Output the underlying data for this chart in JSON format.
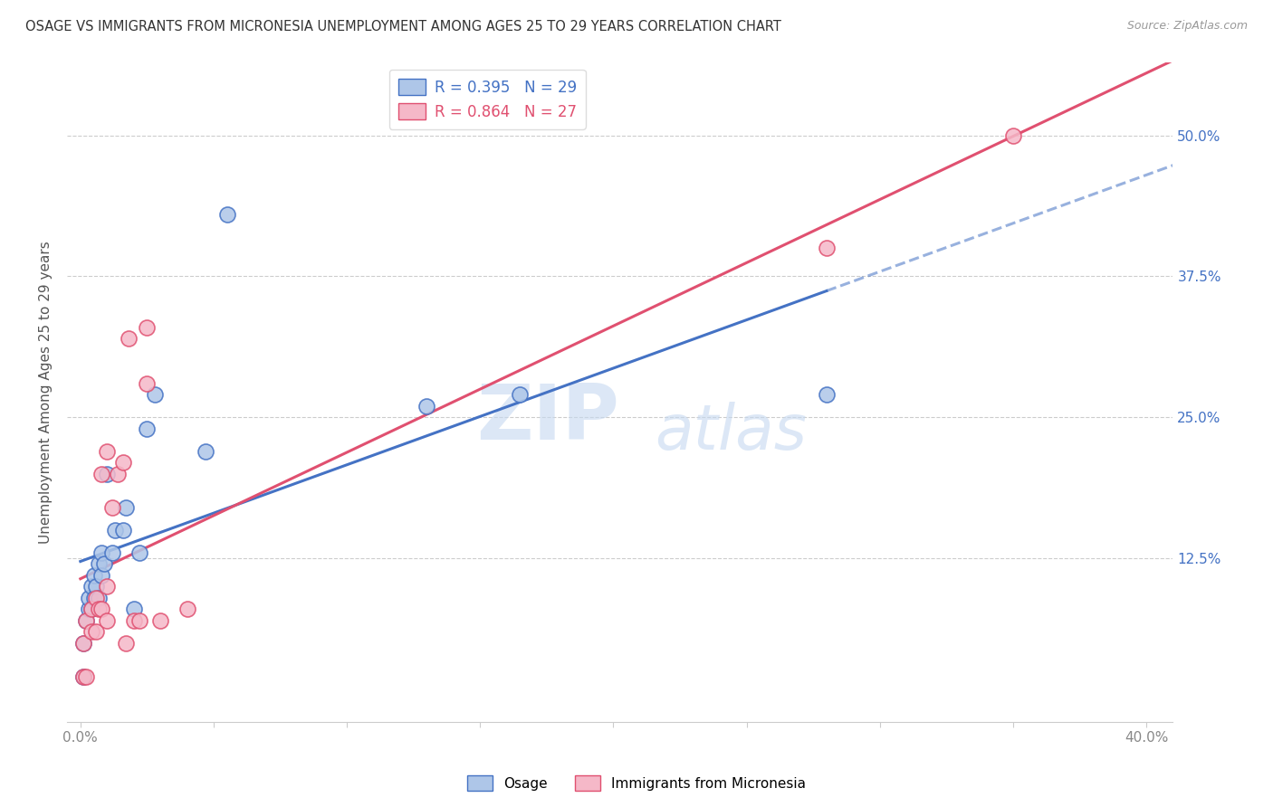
{
  "title": "OSAGE VS IMMIGRANTS FROM MICRONESIA UNEMPLOYMENT AMONG AGES 25 TO 29 YEARS CORRELATION CHART",
  "source": "Source: ZipAtlas.com",
  "ylabel": "Unemployment Among Ages 25 to 29 years",
  "ytick_labels": [
    "",
    "12.5%",
    "25.0%",
    "37.5%",
    "50.0%"
  ],
  "ytick_values": [
    0.0,
    0.125,
    0.25,
    0.375,
    0.5
  ],
  "xlim": [
    -0.005,
    0.41
  ],
  "ylim": [
    -0.02,
    0.565
  ],
  "osage_R": 0.395,
  "osage_N": 29,
  "micronesia_R": 0.864,
  "micronesia_N": 27,
  "osage_color": "#aec6e8",
  "micronesia_color": "#f5b8c8",
  "osage_line_color": "#4472c4",
  "micronesia_line_color": "#e05070",
  "watermark_zip": "ZIP",
  "watermark_atlas": "atlas",
  "osage_x": [
    0.001,
    0.001,
    0.002,
    0.003,
    0.003,
    0.004,
    0.004,
    0.005,
    0.005,
    0.006,
    0.007,
    0.007,
    0.008,
    0.008,
    0.009,
    0.01,
    0.012,
    0.013,
    0.016,
    0.017,
    0.02,
    0.022,
    0.025,
    0.028,
    0.047,
    0.055,
    0.13,
    0.165,
    0.28
  ],
  "osage_y": [
    0.02,
    0.05,
    0.07,
    0.08,
    0.09,
    0.08,
    0.1,
    0.09,
    0.11,
    0.1,
    0.09,
    0.12,
    0.11,
    0.13,
    0.12,
    0.2,
    0.13,
    0.15,
    0.15,
    0.17,
    0.08,
    0.13,
    0.24,
    0.27,
    0.22,
    0.43,
    0.26,
    0.27,
    0.27
  ],
  "micronesia_x": [
    0.001,
    0.001,
    0.002,
    0.002,
    0.004,
    0.004,
    0.006,
    0.006,
    0.007,
    0.008,
    0.008,
    0.01,
    0.01,
    0.01,
    0.012,
    0.014,
    0.016,
    0.017,
    0.018,
    0.02,
    0.022,
    0.025,
    0.025,
    0.03,
    0.04,
    0.28,
    0.35
  ],
  "micronesia_y": [
    0.02,
    0.05,
    0.02,
    0.07,
    0.06,
    0.08,
    0.06,
    0.09,
    0.08,
    0.08,
    0.2,
    0.07,
    0.1,
    0.22,
    0.17,
    0.2,
    0.21,
    0.05,
    0.32,
    0.07,
    0.07,
    0.28,
    0.33,
    0.07,
    0.08,
    0.4,
    0.5
  ],
  "x_ticks": [
    0.0,
    0.05,
    0.1,
    0.15,
    0.2,
    0.25,
    0.3,
    0.35,
    0.4
  ],
  "osage_line_start_x": 0.0,
  "osage_line_solid_end_x": 0.165,
  "micronesia_line_start_x": 0.0,
  "micronesia_line_end_x": 0.4
}
